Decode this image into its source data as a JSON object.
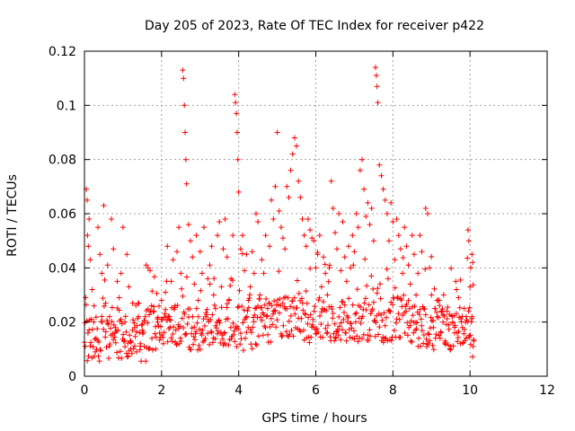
{
  "chart_data": {
    "type": "scatter",
    "title": "Day 205 of 2023, Rate Of TEC Index for receiver p422",
    "xlabel": "GPS time / hours",
    "ylabel": "ROTI / TECUs",
    "xlim": [
      0,
      12
    ],
    "ylim": [
      0,
      0.12
    ],
    "x_ticks": [
      0,
      2,
      4,
      6,
      8,
      10,
      12
    ],
    "x_tick_labels": [
      "0",
      "2",
      "4",
      "6",
      "8",
      "10",
      "12"
    ],
    "y_ticks": [
      0,
      0.02,
      0.04,
      0.06,
      0.08,
      0.1,
      0.12
    ],
    "y_tick_labels": [
      "0",
      "0.02",
      "0.04",
      "0.06",
      "0.08",
      "0.1",
      "0.12"
    ],
    "grid": true,
    "marker": "+",
    "color": "#ff0000",
    "points": [
      [
        0.02,
        0.011
      ],
      [
        0.05,
        0.069
      ],
      [
        0.07,
        0.065
      ],
      [
        0.08,
        0.052
      ],
      [
        0.1,
        0.048
      ],
      [
        0.12,
        0.058
      ],
      [
        0.15,
        0.043
      ],
      [
        0.2,
        0.032
      ],
      [
        0.25,
        0.026
      ],
      [
        0.3,
        0.014
      ],
      [
        0.35,
        0.055
      ],
      [
        0.4,
        0.045
      ],
      [
        0.45,
        0.038
      ],
      [
        0.5,
        0.063
      ],
      [
        0.55,
        0.027
      ],
      [
        0.6,
        0.041
      ],
      [
        0.65,
        0.022
      ],
      [
        0.7,
        0.058
      ],
      [
        0.75,
        0.047
      ],
      [
        0.8,
        0.018
      ],
      [
        0.85,
        0.035
      ],
      [
        0.9,
        0.029
      ],
      [
        0.95,
        0.038
      ],
      [
        1.0,
        0.055
      ],
      [
        1.05,
        0.02
      ],
      [
        1.1,
        0.045
      ],
      [
        1.15,
        0.033
      ],
      [
        1.2,
        0.013
      ],
      [
        1.25,
        0.027
      ],
      [
        1.3,
        0.018
      ],
      [
        1.35,
        0.009
      ],
      [
        1.4,
        0.022
      ],
      [
        1.45,
        0.012
      ],
      [
        1.5,
        0.017
      ],
      [
        1.55,
        0.011
      ],
      [
        1.6,
        0.041
      ],
      [
        1.65,
        0.04
      ],
      [
        1.7,
        0.039
      ],
      [
        1.75,
        0.014
      ],
      [
        1.8,
        0.024
      ],
      [
        1.85,
        0.01
      ],
      [
        1.9,
        0.02
      ],
      [
        1.95,
        0.016
      ],
      [
        2.0,
        0.028
      ],
      [
        2.05,
        0.012
      ],
      [
        2.1,
        0.031
      ],
      [
        2.15,
        0.048
      ],
      [
        2.2,
        0.022
      ],
      [
        2.25,
        0.035
      ],
      [
        2.3,
        0.043
      ],
      [
        2.35,
        0.026
      ],
      [
        2.4,
        0.046
      ],
      [
        2.45,
        0.055
      ],
      [
        2.5,
        0.038
      ],
      [
        2.55,
        0.113
      ],
      [
        2.57,
        0.11
      ],
      [
        2.59,
        0.1
      ],
      [
        2.61,
        0.09
      ],
      [
        2.63,
        0.08
      ],
      [
        2.65,
        0.071
      ],
      [
        2.7,
        0.056
      ],
      [
        2.75,
        0.05
      ],
      [
        2.8,
        0.044
      ],
      [
        2.85,
        0.034
      ],
      [
        2.9,
        0.052
      ],
      [
        2.95,
        0.028
      ],
      [
        3.0,
        0.046
      ],
      [
        3.05,
        0.038
      ],
      [
        3.1,
        0.055
      ],
      [
        3.15,
        0.022
      ],
      [
        3.2,
        0.036
      ],
      [
        3.25,
        0.041
      ],
      [
        3.3,
        0.048
      ],
      [
        3.35,
        0.03
      ],
      [
        3.4,
        0.025
      ],
      [
        3.45,
        0.052
      ],
      [
        3.5,
        0.057
      ],
      [
        3.55,
        0.033
      ],
      [
        3.6,
        0.047
      ],
      [
        3.65,
        0.058
      ],
      [
        3.7,
        0.044
      ],
      [
        3.75,
        0.028
      ],
      [
        3.8,
        0.036
      ],
      [
        3.85,
        0.052
      ],
      [
        3.9,
        0.104
      ],
      [
        3.92,
        0.101
      ],
      [
        3.94,
        0.097
      ],
      [
        3.96,
        0.09
      ],
      [
        3.98,
        0.08
      ],
      [
        4.0,
        0.068
      ],
      [
        4.05,
        0.047
      ],
      [
        4.1,
        0.052
      ],
      [
        4.15,
        0.039
      ],
      [
        4.2,
        0.045
      ],
      [
        4.25,
        0.028
      ],
      [
        4.3,
        0.033
      ],
      [
        4.35,
        0.046
      ],
      [
        4.4,
        0.038
      ],
      [
        4.45,
        0.06
      ],
      [
        4.5,
        0.057
      ],
      [
        4.55,
        0.03
      ],
      [
        4.6,
        0.043
      ],
      [
        4.65,
        0.038
      ],
      [
        4.7,
        0.052
      ],
      [
        4.75,
        0.025
      ],
      [
        4.8,
        0.048
      ],
      [
        4.85,
        0.065
      ],
      [
        4.9,
        0.058
      ],
      [
        4.95,
        0.07
      ],
      [
        5.0,
        0.09
      ],
      [
        5.05,
        0.061
      ],
      [
        5.1,
        0.055
      ],
      [
        5.15,
        0.051
      ],
      [
        5.2,
        0.047
      ],
      [
        5.25,
        0.07
      ],
      [
        5.3,
        0.066
      ],
      [
        5.35,
        0.076
      ],
      [
        5.4,
        0.082
      ],
      [
        5.45,
        0.088
      ],
      [
        5.5,
        0.085
      ],
      [
        5.55,
        0.072
      ],
      [
        5.6,
        0.066
      ],
      [
        5.65,
        0.058
      ],
      [
        5.7,
        0.052
      ],
      [
        5.75,
        0.048
      ],
      [
        5.8,
        0.058
      ],
      [
        5.85,
        0.054
      ],
      [
        5.9,
        0.051
      ],
      [
        5.95,
        0.05
      ],
      [
        6.0,
        0.04
      ],
      [
        6.05,
        0.045
      ],
      [
        6.1,
        0.052
      ],
      [
        6.15,
        0.033
      ],
      [
        6.2,
        0.044
      ],
      [
        6.25,
        0.038
      ],
      [
        6.3,
        0.03
      ],
      [
        6.35,
        0.04
      ],
      [
        6.4,
        0.072
      ],
      [
        6.45,
        0.062
      ],
      [
        6.5,
        0.053
      ],
      [
        6.55,
        0.047
      ],
      [
        6.6,
        0.06
      ],
      [
        6.65,
        0.039
      ],
      [
        6.7,
        0.057
      ],
      [
        6.75,
        0.044
      ],
      [
        6.8,
        0.035
      ],
      [
        6.85,
        0.048
      ],
      [
        6.9,
        0.04
      ],
      [
        6.95,
        0.052
      ],
      [
        7.0,
        0.046
      ],
      [
        7.05,
        0.06
      ],
      [
        7.1,
        0.055
      ],
      [
        7.15,
        0.076
      ],
      [
        7.2,
        0.08
      ],
      [
        7.25,
        0.069
      ],
      [
        7.3,
        0.059
      ],
      [
        7.35,
        0.064
      ],
      [
        7.4,
        0.056
      ],
      [
        7.45,
        0.062
      ],
      [
        7.5,
        0.05
      ],
      [
        7.55,
        0.114
      ],
      [
        7.57,
        0.111
      ],
      [
        7.59,
        0.107
      ],
      [
        7.61,
        0.101
      ],
      [
        7.65,
        0.078
      ],
      [
        7.7,
        0.074
      ],
      [
        7.75,
        0.069
      ],
      [
        7.8,
        0.065
      ],
      [
        7.85,
        0.06
      ],
      [
        7.9,
        0.05
      ],
      [
        7.95,
        0.064
      ],
      [
        8.0,
        0.057
      ],
      [
        8.05,
        0.043
      ],
      [
        8.1,
        0.058
      ],
      [
        8.15,
        0.052
      ],
      [
        8.2,
        0.047
      ],
      [
        8.25,
        0.038
      ],
      [
        8.3,
        0.055
      ],
      [
        8.35,
        0.048
      ],
      [
        8.4,
        0.041
      ],
      [
        8.45,
        0.034
      ],
      [
        8.5,
        0.052
      ],
      [
        8.55,
        0.045
      ],
      [
        8.6,
        0.03
      ],
      [
        8.65,
        0.038
      ],
      [
        8.7,
        0.052
      ],
      [
        8.75,
        0.046
      ],
      [
        8.8,
        0.025
      ],
      [
        8.85,
        0.062
      ],
      [
        8.9,
        0.06
      ],
      [
        8.95,
        0.04
      ],
      [
        9.0,
        0.03
      ],
      [
        9.05,
        0.018
      ],
      [
        9.1,
        0.025
      ],
      [
        9.15,
        0.022
      ],
      [
        9.2,
        0.028
      ],
      [
        9.25,
        0.016
      ],
      [
        9.3,
        0.02
      ],
      [
        9.35,
        0.013
      ],
      [
        9.4,
        0.024
      ],
      [
        9.45,
        0.019
      ],
      [
        9.5,
        0.011
      ],
      [
        9.55,
        0.02
      ],
      [
        9.6,
        0.016
      ],
      [
        9.65,
        0.032
      ],
      [
        9.7,
        0.029
      ],
      [
        9.75,
        0.012
      ],
      [
        9.8,
        0.018
      ],
      [
        9.85,
        0.025
      ],
      [
        9.9,
        0.022
      ],
      [
        9.95,
        0.054
      ],
      [
        9.97,
        0.05
      ],
      [
        10.0,
        0.033
      ],
      [
        10.02,
        0.04
      ],
      [
        10.05,
        0.045
      ],
      [
        10.07,
        0.042
      ],
      [
        10.1,
        0.013
      ],
      [
        10.05,
        0.022
      ],
      [
        9.98,
        0.015
      ],
      [
        10.08,
        0.011
      ]
    ],
    "dense_band": {
      "x_start": 0.0,
      "x_end": 10.1,
      "x_step": 0.015,
      "baseline": 0.013,
      "spread": 0.012,
      "floor": 0.004
    }
  }
}
